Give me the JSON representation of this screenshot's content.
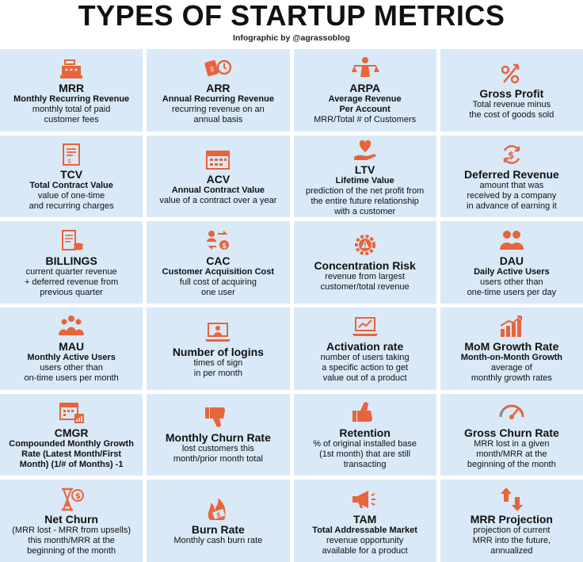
{
  "header": {
    "title": "TYPES OF STARTUP METRICS",
    "credit": "Infographic by @agrassoblog"
  },
  "accent_color": "#e8643a",
  "cell_color": "#d9e9f7",
  "metrics": [
    {
      "icon": "cash-register-icon",
      "name": "MRR",
      "full": "Monthly Recurring Revenue",
      "desc": "monthly total of paid\ncustomer fees"
    },
    {
      "icon": "money-clock-icon",
      "name": "ARR",
      "full": "Annual Recurring Revenue",
      "desc": "recurring revenue on an\nannual basis"
    },
    {
      "icon": "balance-person-icon",
      "name": "ARPA",
      "full": "Average Revenue\nPer Account",
      "desc": "MRR/Total # of Customers"
    },
    {
      "icon": "percent-arrow-icon",
      "name": "Gross Profit",
      "full": "",
      "desc": "Total revenue minus\nthe cost of goods sold"
    },
    {
      "icon": "contract-icon",
      "name": "TCV",
      "full": "Total Contract Value",
      "desc": "value of one-time\nand recurring charges"
    },
    {
      "icon": "calendar-icon",
      "name": "ACV",
      "full": "Annual Contract Value",
      "desc": "value of a contract over a year"
    },
    {
      "icon": "heart-hand-icon",
      "name": "LTV",
      "full": "Lifetime Value",
      "desc": "prediction of the net profit from\nthe entire future relationship\nwith a customer"
    },
    {
      "icon": "dollar-cycle-icon",
      "name": "Deferred Revenue",
      "full": "",
      "desc": "amount that was\nreceived by a company\nin advance of earning it"
    },
    {
      "icon": "bill-coins-icon",
      "name": "BILLINGS",
      "full": "",
      "desc": "current quarter revenue\n+ deferred revenue from\nprevious quarter"
    },
    {
      "icon": "user-dollar-icon",
      "name": "CAC",
      "full": "Customer Acquisition Cost",
      "desc": "full cost of acquiring\none user"
    },
    {
      "icon": "gear-warning-icon",
      "name": "Concentration Risk",
      "full": "",
      "desc": "revenue from largest\ncustomer/total revenue"
    },
    {
      "icon": "two-users-icon",
      "name": "DAU",
      "full": "Daily Active Users",
      "desc": "users other than\none-time users per day"
    },
    {
      "icon": "user-group-icon",
      "name": "MAU",
      "full": "Monthly Active Users",
      "desc": "users other than\non-time users per month"
    },
    {
      "icon": "laptop-user-icon",
      "name": "Number of logins",
      "full": "",
      "desc": "times of sign\nin per month"
    },
    {
      "icon": "laptop-chart-icon",
      "name": "Activation rate",
      "full": "",
      "desc": "number of users taking\na specific action to get\nvalue out of a product"
    },
    {
      "icon": "bar-growth-icon",
      "name": "MoM Growth Rate",
      "full": "Month-on-Month Growth",
      "desc": "average of\nmonthly growth rates"
    },
    {
      "icon": "calendar-chart-icon",
      "name": "CMGR",
      "full": "Compounded Monthly Growth\nRate (Latest Month/First\nMonth) (1/# of Months) -1",
      "desc": ""
    },
    {
      "icon": "thumbs-down-icon",
      "name": "Monthly Churn Rate",
      "full": "",
      "desc": "lost customers this\nmonth/prior month total"
    },
    {
      "icon": "thumbs-up-icon",
      "name": "Retention",
      "full": "",
      "desc": "% of original installed base\n(1st month) that are still\ntransacting"
    },
    {
      "icon": "gauge-icon",
      "name": "Gross Churn Rate",
      "full": "",
      "desc": "MRR lost in a given\nmonth/MRR at the\nbeginning of the month"
    },
    {
      "icon": "hourglass-dollar-icon",
      "name": "Net Churn",
      "full": "",
      "desc": "(MRR lost - MRR from upsells)\nthis month/MRR at the\nbeginning of the month"
    },
    {
      "icon": "burning-money-icon",
      "name": "Burn Rate",
      "full": "",
      "desc": "Monthly cash burn rate"
    },
    {
      "icon": "megaphone-icon",
      "name": "TAM",
      "full": "Total Addressable Market",
      "desc": "revenue opportunity\navailable for a product"
    },
    {
      "icon": "up-down-arrows-icon",
      "name": "MRR Projection",
      "full": "",
      "desc": "projection of current\nMRR into the future,\nannualized"
    }
  ]
}
